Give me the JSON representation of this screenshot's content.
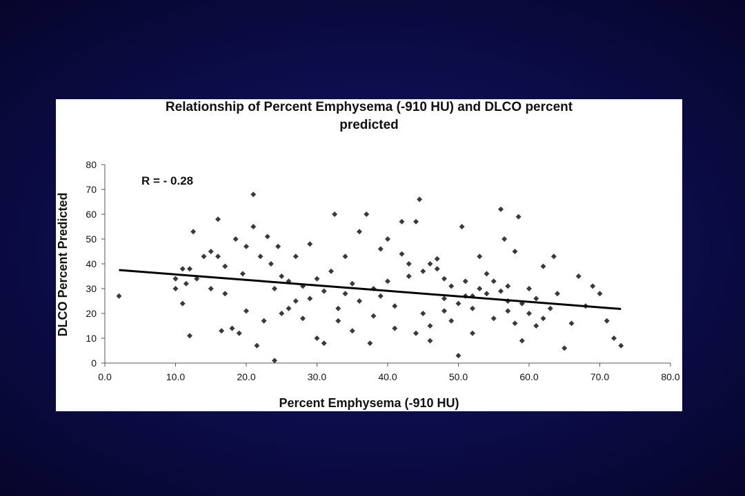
{
  "chart_data": {
    "type": "scatter",
    "title_lines": [
      "Relationship of Percent Emphysema (-910 HU) and DLCO percent",
      "predicted"
    ],
    "xlabel": "Percent Emphysema (-910 HU)",
    "ylabel": "DLCO Percent Predicted",
    "annotation": "R = - 0.28",
    "xlim": [
      0,
      80
    ],
    "ylim": [
      0,
      80
    ],
    "x_ticks": [
      "0.0",
      "10.0",
      "20.0",
      "30.0",
      "40.0",
      "50.0",
      "60.0",
      "70.0",
      "80.0"
    ],
    "y_ticks": [
      "0",
      "10",
      "20",
      "30",
      "40",
      "50",
      "60",
      "70",
      "80"
    ],
    "grid": false,
    "marker": "diamond",
    "marker_color": "#3a3a3a",
    "trendline": {
      "x": [
        2,
        73
      ],
      "y": [
        37.5,
        21.8
      ]
    },
    "points": [
      [
        2,
        27
      ],
      [
        10,
        30
      ],
      [
        10,
        34
      ],
      [
        11,
        38
      ],
      [
        12,
        38
      ],
      [
        12,
        11
      ],
      [
        12.5,
        53
      ],
      [
        11,
        24
      ],
      [
        11.5,
        32
      ],
      [
        13,
        34
      ],
      [
        14,
        43
      ],
      [
        15,
        45
      ],
      [
        15,
        30
      ],
      [
        16,
        58
      ],
      [
        16,
        43
      ],
      [
        16.5,
        13
      ],
      [
        17,
        39
      ],
      [
        17,
        28
      ],
      [
        18,
        14
      ],
      [
        18.5,
        50
      ],
      [
        19,
        12
      ],
      [
        19.5,
        36
      ],
      [
        20,
        47
      ],
      [
        20,
        21
      ],
      [
        21,
        68
      ],
      [
        21,
        55
      ],
      [
        21.5,
        7
      ],
      [
        22,
        43
      ],
      [
        22.5,
        17
      ],
      [
        23,
        51
      ],
      [
        23.5,
        40
      ],
      [
        24,
        1
      ],
      [
        24,
        30
      ],
      [
        24.5,
        47
      ],
      [
        25,
        35
      ],
      [
        26,
        22
      ],
      [
        27,
        43
      ],
      [
        28,
        18
      ],
      [
        29,
        48
      ],
      [
        30,
        10
      ],
      [
        31,
        8
      ],
      [
        32,
        37
      ],
      [
        32.5,
        60
      ],
      [
        33,
        17
      ],
      [
        34,
        43
      ],
      [
        35,
        13
      ],
      [
        36,
        53
      ],
      [
        37,
        60
      ],
      [
        37.5,
        8
      ],
      [
        38,
        30
      ],
      [
        39,
        46
      ],
      [
        40,
        50
      ],
      [
        41,
        14
      ],
      [
        42,
        57
      ],
      [
        43,
        35
      ],
      [
        44,
        57
      ],
      [
        44.5,
        66
      ],
      [
        45,
        20
      ],
      [
        46,
        9
      ],
      [
        47,
        42
      ],
      [
        48,
        26
      ],
      [
        49,
        17
      ],
      [
        50,
        3
      ],
      [
        50.5,
        55
      ],
      [
        51,
        33
      ],
      [
        52,
        12
      ],
      [
        53,
        43
      ],
      [
        54,
        28
      ],
      [
        55,
        18
      ],
      [
        56,
        62
      ],
      [
        56.5,
        50
      ],
      [
        57,
        25
      ],
      [
        58,
        45
      ],
      [
        58.5,
        59
      ],
      [
        59,
        9
      ],
      [
        60,
        30
      ],
      [
        61,
        15
      ],
      [
        62,
        39
      ],
      [
        63,
        22
      ],
      [
        63.5,
        43
      ],
      [
        64,
        28
      ],
      [
        65,
        6
      ],
      [
        66,
        16
      ],
      [
        67,
        35
      ],
      [
        68,
        23
      ],
      [
        69,
        31
      ],
      [
        70,
        28
      ],
      [
        71,
        17
      ],
      [
        72,
        10
      ],
      [
        73,
        7
      ],
      [
        46,
        40
      ],
      [
        47,
        38
      ],
      [
        48,
        34
      ],
      [
        49,
        31
      ],
      [
        51,
        27
      ],
      [
        52,
        22
      ],
      [
        53,
        30
      ],
      [
        54,
        36
      ],
      [
        55,
        33
      ],
      [
        57,
        31
      ],
      [
        42,
        44
      ],
      [
        43,
        40
      ],
      [
        45,
        37
      ],
      [
        40,
        33
      ],
      [
        39,
        27
      ],
      [
        41,
        23
      ],
      [
        38,
        19
      ],
      [
        36,
        25
      ],
      [
        35,
        32
      ],
      [
        34,
        28
      ],
      [
        33,
        22
      ],
      [
        31,
        29
      ],
      [
        30,
        34
      ],
      [
        29,
        26
      ],
      [
        28,
        31
      ],
      [
        27,
        25
      ],
      [
        26,
        33
      ],
      [
        25,
        20
      ],
      [
        60,
        20
      ],
      [
        61,
        26
      ],
      [
        62,
        18
      ],
      [
        59,
        24
      ],
      [
        58,
        16
      ],
      [
        57,
        21
      ],
      [
        56,
        29
      ],
      [
        44,
        12
      ],
      [
        46,
        15
      ],
      [
        48,
        21
      ],
      [
        50,
        24
      ],
      [
        52,
        27
      ]
    ]
  }
}
